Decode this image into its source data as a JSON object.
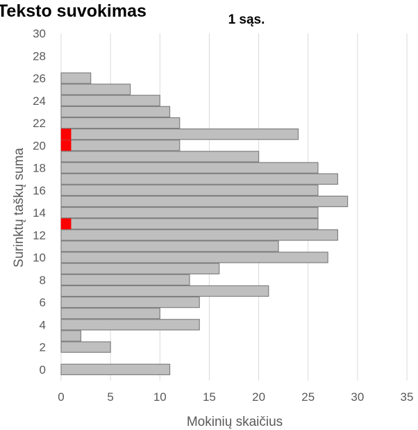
{
  "chart_data": {
    "type": "bar",
    "orientation": "horizontal",
    "title": "Teksto suvokimas",
    "subtitle": "1 sąs.",
    "xlabel": "Mokinių skaičius",
    "ylabel": "Surinktų taškų suma",
    "xlim": [
      0,
      35
    ],
    "ylim": [
      -1,
      30
    ],
    "x_ticks": [
      0,
      5,
      10,
      15,
      20,
      25,
      30,
      35
    ],
    "y_ticks": [
      0,
      2,
      4,
      6,
      8,
      10,
      12,
      14,
      16,
      18,
      20,
      22,
      24,
      26,
      28,
      30
    ],
    "grid": "vertical",
    "categories": [
      0,
      1,
      2,
      3,
      4,
      5,
      6,
      7,
      8,
      9,
      10,
      11,
      12,
      13,
      14,
      15,
      16,
      17,
      18,
      19,
      20,
      21,
      22,
      23,
      24,
      25,
      26,
      27,
      28,
      29,
      30
    ],
    "values": [
      11,
      0,
      5,
      2,
      14,
      10,
      14,
      21,
      13,
      16,
      27,
      22,
      28,
      26,
      26,
      29,
      26,
      28,
      26,
      20,
      12,
      24,
      12,
      11,
      10,
      7,
      3,
      0,
      0,
      0,
      0
    ],
    "highlight": {
      "categories": [
        13,
        20,
        21
      ],
      "value": 1,
      "color": "#ff0000"
    },
    "bar_color": "#bfbfbf",
    "bar_stroke": "#7f7f7f",
    "grid_color": "#d9d9d9"
  }
}
